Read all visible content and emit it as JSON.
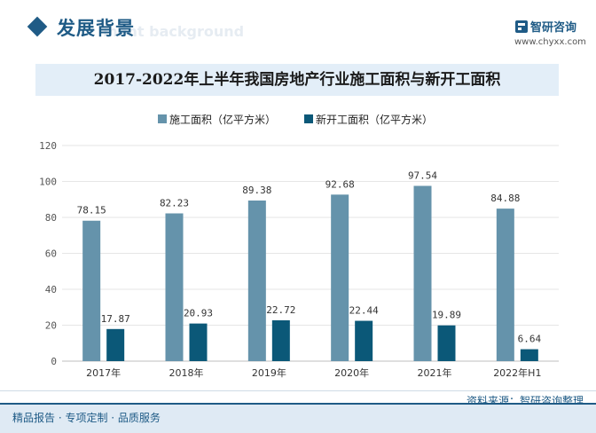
{
  "header": {
    "section_title": "发展背景",
    "section_subtitle": "ment background",
    "brand_name": "智研咨询",
    "brand_url": "www.chyxx.com"
  },
  "chart_data": {
    "type": "bar",
    "title": "2017-2022年上半年我国房地产行业施工面积与新开工面积",
    "categories": [
      "2017年",
      "2018年",
      "2019年",
      "2020年",
      "2021年",
      "2022年H1"
    ],
    "series": [
      {
        "name": "施工面积（亿平方米）",
        "values": [
          78.15,
          82.23,
          89.38,
          92.68,
          97.54,
          84.88
        ],
        "color": "#6593ab"
      },
      {
        "name": "新开工面积（亿平方米）",
        "values": [
          17.87,
          20.93,
          22.72,
          22.44,
          19.89,
          6.64
        ],
        "color": "#0b5878"
      }
    ],
    "ylim": [
      0,
      120
    ],
    "yticks": [
      0,
      20,
      40,
      60,
      80,
      100,
      120
    ],
    "legend_position": "top",
    "grid": true
  },
  "footer": {
    "tagline": "精品报告 · 专项定制 · 品质服务",
    "source": "资料来源：智研咨询整理"
  }
}
